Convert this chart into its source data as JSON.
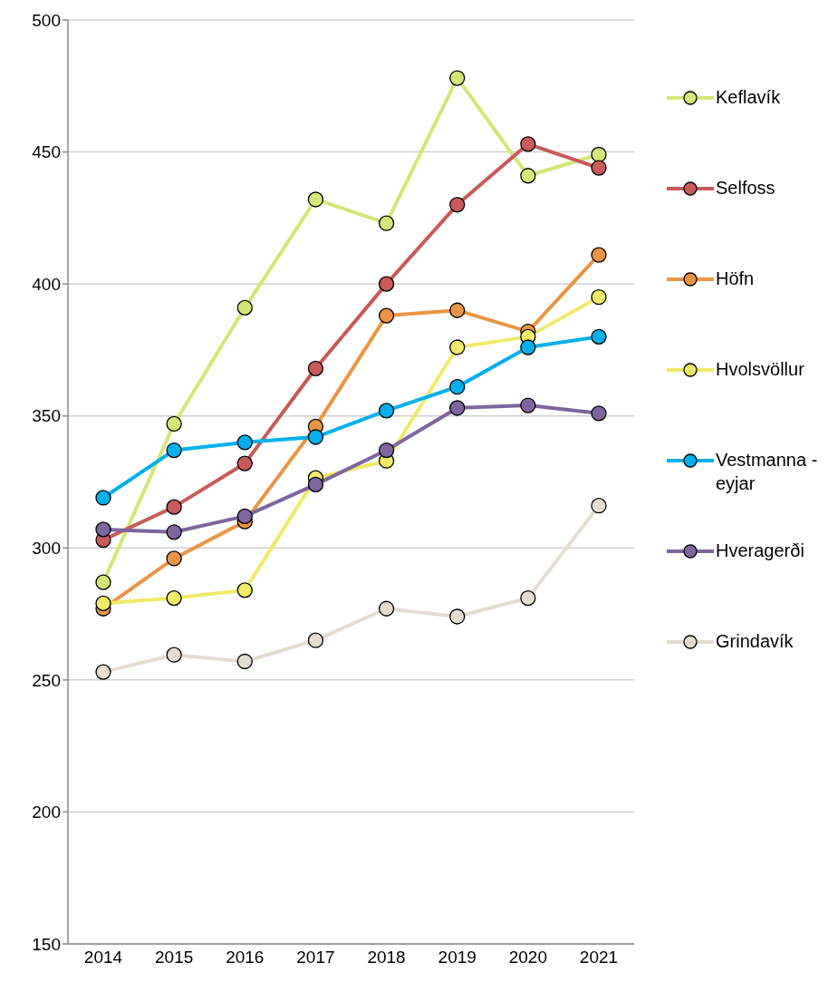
{
  "chart_data": {
    "type": "line",
    "categories": [
      "2014",
      "2015",
      "2016",
      "2017",
      "2018",
      "2019",
      "2020",
      "2021"
    ],
    "series": [
      {
        "name": "Keflavík",
        "color": "#d4e677",
        "values": [
          287,
          347,
          391,
          432,
          423,
          478,
          441,
          449
        ]
      },
      {
        "name": "Selfoss",
        "color": "#c85a5a",
        "values": [
          303,
          315.5,
          332,
          368,
          400,
          430,
          453,
          444
        ]
      },
      {
        "name": "Höfn",
        "color": "#e99545",
        "values": [
          277,
          296,
          310,
          346,
          388,
          390,
          382,
          411
        ]
      },
      {
        "name": "Hvolsvöllur",
        "color": "#f0ea6a",
        "values": [
          279,
          281,
          284,
          326.5,
          333,
          376,
          380,
          395
        ]
      },
      {
        "name": "Vestmanna - eyjar",
        "color": "#00b0ec",
        "values": [
          319,
          337,
          340,
          342,
          352,
          361,
          376,
          380
        ]
      },
      {
        "name": "Hveragerði",
        "color": "#7d66a0",
        "values": [
          307,
          306,
          312,
          324,
          337,
          353,
          354,
          351
        ]
      },
      {
        "name": "Grindavík",
        "color": "#e2ddd0",
        "values": [
          253,
          259.5,
          257,
          265,
          277,
          274,
          281,
          316
        ]
      }
    ],
    "ylim": [
      150,
      500
    ],
    "yticks": [
      150,
      200,
      250,
      300,
      350,
      400,
      450,
      500
    ],
    "grid": "y",
    "legend": "right",
    "marker": "circle"
  }
}
